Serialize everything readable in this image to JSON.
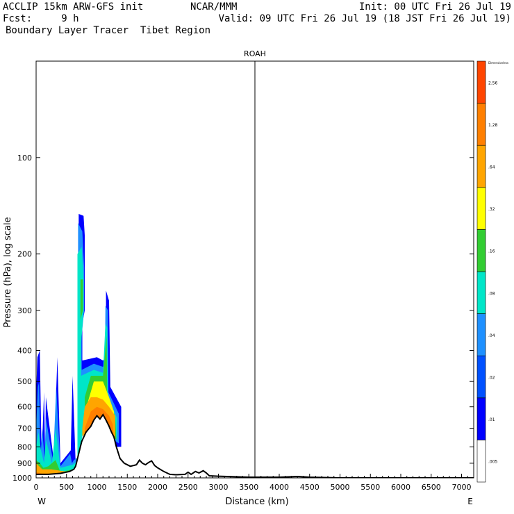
{
  "header": {
    "line1_left": "ACCLIP 15km ARW-GFS init",
    "line1_center": "NCAR/MMM",
    "line1_right": "Init: 00 UTC Fri 26 Jul 19",
    "line2_left": "Fcst:     9 h",
    "line2_right": "Valid: 09 UTC Fri 26 Jul 19 (18 JST Fri 26 Jul 19)",
    "line3_left": "Boundary Layer Tracer  Tibet Region"
  },
  "chart_data": {
    "type": "cross-section contour",
    "title": "ROAH",
    "xlabel": "Distance (km)",
    "ylabel": "Pressure (hPa), log scale",
    "x_left_label": "W",
    "x_right_label": "E",
    "xlim": [
      0,
      7200
    ],
    "ylim": [
      1000,
      50
    ],
    "x_ticks": [
      "0",
      "500",
      "1000",
      "1500",
      "2000",
      "2500",
      "3000",
      "3500",
      "4000",
      "4500",
      "5000",
      "5500",
      "6000",
      "6500",
      "7000"
    ],
    "y_ticks": [
      "100",
      "200",
      "300",
      "400",
      "500",
      "600",
      "700",
      "800",
      "900",
      "1000"
    ],
    "marker_line_km": 3600,
    "terrain_pressure": [
      [
        0,
        975
      ],
      [
        200,
        975
      ],
      [
        400,
        968
      ],
      [
        550,
        955
      ],
      [
        620,
        940
      ],
      [
        650,
        920
      ],
      [
        700,
        840
      ],
      [
        750,
        770
      ],
      [
        820,
        720
      ],
      [
        900,
        690
      ],
      [
        950,
        660
      ],
      [
        1000,
        640
      ],
      [
        1050,
        655
      ],
      [
        1100,
        635
      ],
      [
        1150,
        660
      ],
      [
        1200,
        690
      ],
      [
        1240,
        720
      ],
      [
        1280,
        745
      ],
      [
        1320,
        800
      ],
      [
        1380,
        870
      ],
      [
        1450,
        900
      ],
      [
        1550,
        920
      ],
      [
        1650,
        910
      ],
      [
        1700,
        880
      ],
      [
        1750,
        900
      ],
      [
        1800,
        910
      ],
      [
        1850,
        895
      ],
      [
        1900,
        885
      ],
      [
        1950,
        915
      ],
      [
        2000,
        930
      ],
      [
        2100,
        955
      ],
      [
        2200,
        975
      ],
      [
        2300,
        978
      ],
      [
        2450,
        975
      ],
      [
        2500,
        960
      ],
      [
        2550,
        975
      ],
      [
        2620,
        955
      ],
      [
        2680,
        965
      ],
      [
        2750,
        950
      ],
      [
        2800,
        965
      ],
      [
        2850,
        985
      ],
      [
        3000,
        988
      ],
      [
        3500,
        995
      ],
      [
        4000,
        995
      ],
      [
        4300,
        990
      ],
      [
        4500,
        995
      ],
      [
        5000,
        1000
      ],
      [
        6000,
        1000
      ],
      [
        7200,
        1000
      ]
    ],
    "legend": {
      "title": "Dimensionless",
      "levels": [
        ".005",
        ".01",
        ".02",
        ".04",
        ".08",
        ".16",
        ".32",
        ".64",
        "1.28",
        "2.56"
      ],
      "colors": [
        "#ffffff",
        "#0000ff",
        "#0050ff",
        "#1e90ff",
        "#00e6c8",
        "#32cd32",
        "#ffff00",
        "#ffa500",
        "#ff7f00",
        "#ff4500"
      ]
    },
    "tracer_regions": [
      {
        "level": ".01",
        "color": "#0000ff",
        "polygon": [
          [
            0,
            1000
          ],
          [
            700,
            1000
          ],
          [
            700,
            150
          ],
          [
            780,
            152
          ],
          [
            800,
            175
          ],
          [
            800,
            300
          ],
          [
            760,
            330
          ],
          [
            760,
            430
          ],
          [
            1000,
            420
          ],
          [
            1100,
            430
          ],
          [
            1150,
            420
          ],
          [
            1150,
            260
          ],
          [
            1200,
            280
          ],
          [
            1220,
            520
          ],
          [
            1400,
            600
          ],
          [
            1400,
            800
          ],
          [
            1300,
            800
          ],
          [
            1250,
            720
          ],
          [
            750,
            720
          ],
          [
            720,
            850
          ],
          [
            650,
            900
          ],
          [
            600,
            480
          ],
          [
            570,
            820
          ],
          [
            400,
            900
          ],
          [
            350,
            420
          ],
          [
            290,
            880
          ],
          [
            160,
            560
          ],
          [
            150,
            860
          ],
          [
            130,
            540
          ],
          [
            90,
            870
          ],
          [
            60,
            400
          ],
          [
            20,
            420
          ],
          [
            0,
            550
          ]
        ]
      },
      {
        "level": ".04",
        "color": "#1e90ff",
        "polygon": [
          [
            0,
            1000
          ],
          [
            690,
            1000
          ],
          [
            690,
            160
          ],
          [
            760,
            170
          ],
          [
            790,
            220
          ],
          [
            790,
            300
          ],
          [
            750,
            360
          ],
          [
            750,
            460
          ],
          [
            950,
            440
          ],
          [
            1100,
            450
          ],
          [
            1130,
            440
          ],
          [
            1140,
            290
          ],
          [
            1180,
            300
          ],
          [
            1190,
            540
          ],
          [
            1360,
            630
          ],
          [
            1360,
            780
          ],
          [
            1270,
            760
          ],
          [
            1230,
            700
          ],
          [
            760,
            700
          ],
          [
            700,
            860
          ],
          [
            620,
            880
          ],
          [
            590,
            900
          ],
          [
            560,
            840
          ],
          [
            400,
            920
          ],
          [
            330,
            520
          ],
          [
            280,
            890
          ],
          [
            160,
            650
          ],
          [
            140,
            880
          ],
          [
            100,
            700
          ],
          [
            70,
            880
          ],
          [
            50,
            500
          ],
          [
            30,
            520
          ],
          [
            0,
            700
          ]
        ]
      },
      {
        "level": ".08",
        "color": "#00e6c8",
        "polygon": [
          [
            0,
            1000
          ],
          [
            680,
            1000
          ],
          [
            680,
            200
          ],
          [
            750,
            190
          ],
          [
            780,
            240
          ],
          [
            780,
            300
          ],
          [
            740,
            380
          ],
          [
            740,
            480
          ],
          [
            950,
            460
          ],
          [
            1100,
            470
          ],
          [
            1140,
            330
          ],
          [
            1170,
            340
          ],
          [
            1180,
            560
          ],
          [
            1330,
            650
          ],
          [
            1330,
            760
          ],
          [
            1250,
            740
          ],
          [
            780,
            700
          ],
          [
            700,
            880
          ],
          [
            600,
            910
          ],
          [
            400,
            930
          ],
          [
            320,
            700
          ],
          [
            260,
            900
          ],
          [
            160,
            760
          ],
          [
            130,
            900
          ],
          [
            80,
            820
          ],
          [
            40,
            720
          ],
          [
            0,
            800
          ]
        ]
      },
      {
        "level": ".16",
        "color": "#32cd32",
        "polygon": [
          [
            0,
            1000
          ],
          [
            600,
            1000
          ],
          [
            600,
            940
          ],
          [
            400,
            960
          ],
          [
            320,
            880
          ],
          [
            200,
            920
          ],
          [
            120,
            930
          ],
          [
            60,
            900
          ],
          [
            0,
            880
          ]
        ]
      },
      {
        "level": ".16",
        "color": "#32cd32",
        "polygon": [
          [
            730,
            240
          ],
          [
            770,
            240
          ],
          [
            770,
            300
          ],
          [
            730,
            320
          ]
        ]
      },
      {
        "level": ".16",
        "color": "#32cd32",
        "polygon": [
          [
            800,
            560
          ],
          [
            900,
            480
          ],
          [
            1100,
            480
          ],
          [
            1160,
            360
          ],
          [
            1170,
            560
          ],
          [
            1300,
            640
          ],
          [
            1320,
            760
          ],
          [
            1200,
            720
          ],
          [
            800,
            730
          ]
        ]
      },
      {
        "level": ".32",
        "color": "#ffff00",
        "polygon": [
          [
            850,
            580
          ],
          [
            950,
            500
          ],
          [
            1100,
            500
          ],
          [
            1200,
            560
          ],
          [
            1280,
            620
          ],
          [
            1300,
            720
          ],
          [
            1200,
            700
          ],
          [
            850,
            700
          ]
        ]
      },
      {
        "level": ".64",
        "color": "#ffa500",
        "polygon": [
          [
            0,
            1000
          ],
          [
            600,
            1000
          ],
          [
            560,
            960
          ],
          [
            400,
            950
          ],
          [
            250,
            940
          ],
          [
            100,
            940
          ],
          [
            0,
            900
          ]
        ]
      },
      {
        "level": ".64",
        "color": "#ffa500",
        "polygon": [
          [
            760,
            700
          ],
          [
            800,
            600
          ],
          [
            900,
            560
          ],
          [
            1000,
            560
          ],
          [
            1100,
            570
          ],
          [
            1200,
            600
          ],
          [
            1300,
            640
          ],
          [
            1300,
            760
          ],
          [
            1200,
            740
          ],
          [
            1000,
            700
          ],
          [
            760,
            740
          ]
        ]
      },
      {
        "level": "1.28",
        "color": "#ff7f00",
        "polygon": [
          [
            0,
            1000
          ],
          [
            550,
            1000
          ],
          [
            500,
            975
          ],
          [
            300,
            970
          ],
          [
            100,
            970
          ],
          [
            0,
            960
          ]
        ]
      },
      {
        "level": "1.28",
        "color": "#ff7f00",
        "polygon": [
          [
            800,
            700
          ],
          [
            900,
            620
          ],
          [
            1000,
            600
          ],
          [
            1100,
            610
          ],
          [
            1200,
            640
          ],
          [
            1260,
            680
          ],
          [
            1280,
            760
          ],
          [
            1150,
            740
          ],
          [
            900,
            720
          ],
          [
            800,
            760
          ]
        ]
      }
    ]
  }
}
